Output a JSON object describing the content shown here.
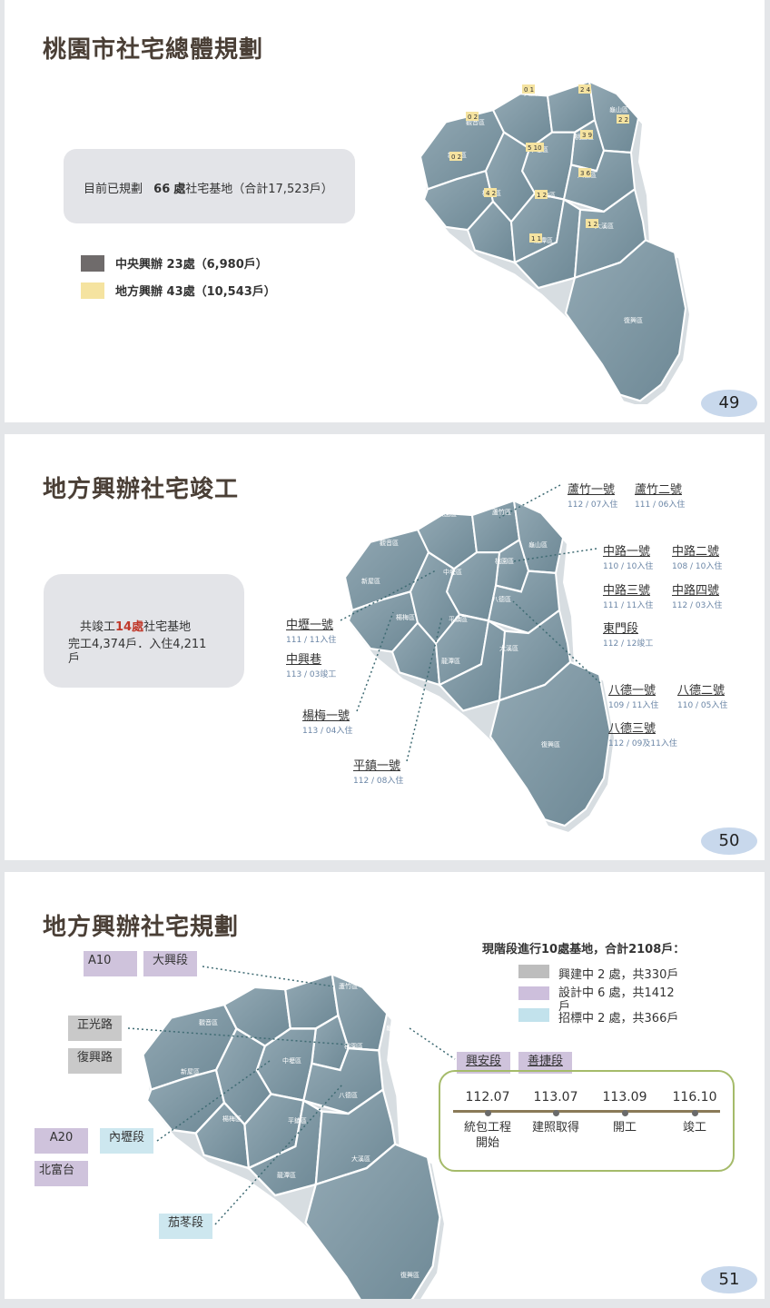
{
  "map_labels": {
    "dayuan": "大園區",
    "luzhu": "蘆竹區",
    "guanyin": "觀音區",
    "guishan": "龜山區",
    "taoyuan": "桃園區",
    "zhongli": "中壢區",
    "xinwu": "新屋區",
    "bade": "八德區",
    "yangmei": "楊梅區",
    "pingzhen": "平鎮區",
    "daxi": "大溪區",
    "longtan": "龍潭區",
    "fuxing": "復興區"
  },
  "slide1": {
    "title": "桃園市社宅總體規劃",
    "summary_pre": "目前已規劃",
    "summary_num": "66",
    "summary_unit": "處",
    "summary_post": "社宅基地（合計17,523戶）",
    "legend": [
      {
        "label": "中央興辦 23處（6,980戶）",
        "color": "#6f6b6b"
      },
      {
        "label": "地方興辦 43處（10,543戶）",
        "color": "#f5e3a0"
      }
    ],
    "district_counts": {
      "dayuan": "0 1",
      "luzhu": "2 4",
      "guanyin": "0 2",
      "guishan": "2 2",
      "taoyuan": "3 9",
      "zhongli": "5 10",
      "xinwu": "0 2",
      "bade": "3 6",
      "yangmei": "4 2",
      "pingzhen": "1 2",
      "daxi": "1 2",
      "longtan": "1 1"
    },
    "page": "49"
  },
  "slide2": {
    "title": "地方興辦社宅竣工",
    "summary_pre": "共竣工",
    "summary_hl": "14處",
    "summary_post": "社宅基地",
    "summary_line2": "完工4,374戶．入住4,211",
    "summary_line3": "戶",
    "sites": {
      "luzhu1": {
        "name": "蘆竹一號",
        "sub": "112 / 07入住"
      },
      "luzhu2": {
        "name": "蘆竹二號",
        "sub": "111 / 06入住"
      },
      "zhonglu1": {
        "name": "中路一號",
        "sub": "110 / 10入住"
      },
      "zhonglu2": {
        "name": "中路二號",
        "sub": "108 / 10入住"
      },
      "zhonglu3": {
        "name": "中路三號",
        "sub": "111 / 11入住"
      },
      "zhonglu4": {
        "name": "中路四號",
        "sub": "112 / 03入住"
      },
      "dongmen": {
        "name": "東門段",
        "sub": "112 / 12竣工"
      },
      "zhongli1": {
        "name": "中壢一號",
        "sub": "111 / 11入住"
      },
      "zhongxing": {
        "name": "中興巷",
        "sub": "113 / 03竣工"
      },
      "yangmei1": {
        "name": "楊梅一號",
        "sub": "113 / 04入住"
      },
      "pingzhen1": {
        "name": "平鎮一號",
        "sub": "112 / 08入住"
      },
      "bade1": {
        "name": "八德一號",
        "sub": "109 / 11入住"
      },
      "bade2": {
        "name": "八德二號",
        "sub": "110 / 05入住"
      },
      "bade3": {
        "name": "八德三號",
        "sub": "112 / 09及11入住"
      }
    },
    "page": "50"
  },
  "slide3": {
    "title": "地方興辦社宅規劃",
    "status_title": "現階段進行10處基地，合計2108戶：",
    "status": [
      {
        "label": "興建中 2 處，共330戶",
        "color": "#bdbdbd"
      },
      {
        "label": "設計中 6 處，共1412戶",
        "color": "#cdbfdc"
      },
      {
        "label": "招標中 2 處，共366戶",
        "color": "#c2e2ec"
      }
    ],
    "tags": {
      "a10": "A10",
      "daxing": "大興段",
      "zhengguang": "正光路",
      "fuxing_rd": "復興路",
      "a20": "A20",
      "neili": "內壢段",
      "beifutai": "北富台",
      "jiadong": "茄苳段",
      "xingan": "興安段",
      "shanjie": "善捷段"
    },
    "timeline": [
      {
        "date": "112.07",
        "label": "統包工程開始"
      },
      {
        "date": "113.07",
        "label": "建照取得"
      },
      {
        "date": "113.09",
        "label": "開工"
      },
      {
        "date": "116.10",
        "label": "竣工"
      }
    ],
    "page": "51"
  },
  "colors": {
    "map_fill": "#7e97a4",
    "map_light": "#a8bac4",
    "title": "#4a3f36",
    "accent_red": "#c0392b",
    "timeline_border": "#a5bb6a"
  }
}
